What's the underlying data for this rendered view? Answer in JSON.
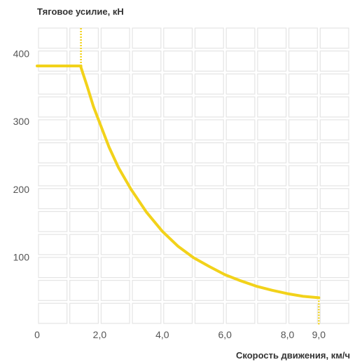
{
  "chart_data": {
    "type": "line",
    "ylabel": "Тяговое усилие, кН",
    "xlabel": "Скорость движения, км/ч",
    "x_ticks": [
      {
        "value": 0,
        "label": "0"
      },
      {
        "value": 2,
        "label": "2,0"
      },
      {
        "value": 4,
        "label": "4,0"
      },
      {
        "value": 6,
        "label": "6,0"
      },
      {
        "value": 8,
        "label": "8,0"
      },
      {
        "value": 9,
        "label": "9,0"
      }
    ],
    "y_ticks": [
      {
        "value": 100,
        "label": "100"
      },
      {
        "value": 200,
        "label": "200"
      },
      {
        "value": 300,
        "label": "300"
      },
      {
        "value": 400,
        "label": "400"
      }
    ],
    "xlim": [
      0,
      10
    ],
    "ylim": [
      0,
      440
    ],
    "grid": true,
    "series_color": "#f2d21a",
    "series": [
      {
        "x": [
          0,
          1.4,
          1.4,
          1.6,
          1.8,
          2.0,
          2.3,
          2.6,
          3.0,
          3.5,
          4.0,
          4.5,
          5.0,
          5.5,
          6.0,
          6.5,
          7.0,
          7.5,
          8.0,
          8.5,
          9.0
        ],
        "y": [
          382,
          382,
          380,
          352,
          322,
          298,
          262,
          232,
          200,
          166,
          138,
          116,
          99,
          86,
          74,
          65,
          57,
          51,
          46,
          42,
          40
        ]
      }
    ],
    "vertical_markers": [
      {
        "x": 1.4,
        "y_from": 382,
        "y_to": 440
      },
      {
        "x": 9.0,
        "y_from": 40,
        "y_to": 0
      }
    ]
  }
}
